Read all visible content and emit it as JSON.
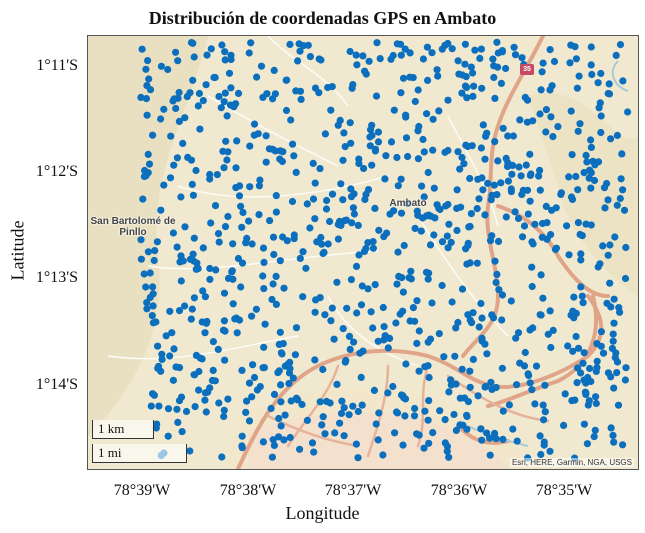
{
  "map": {
    "title": "Distribución de coordenadas GPS en Ambato",
    "xlabel": "Longitude",
    "ylabel": "Latitude",
    "lat_ticks": [
      "1°11'S",
      "1°12'S",
      "1°13'S",
      "1°14'S"
    ],
    "lon_ticks": [
      "78°39'W",
      "78°38'W",
      "78°37'W",
      "78°36'W",
      "78°35'W"
    ],
    "attribution": "Esri, HERE, Garmin, NGA, USGS",
    "scale_km": "1 km",
    "scale_mi": "1 mi",
    "places": [
      "San Bartolomé de Pinllo",
      "Ambato"
    ],
    "highway_shield": "35",
    "point_color": "#0b6fbd",
    "basemap": "topographic"
  }
}
